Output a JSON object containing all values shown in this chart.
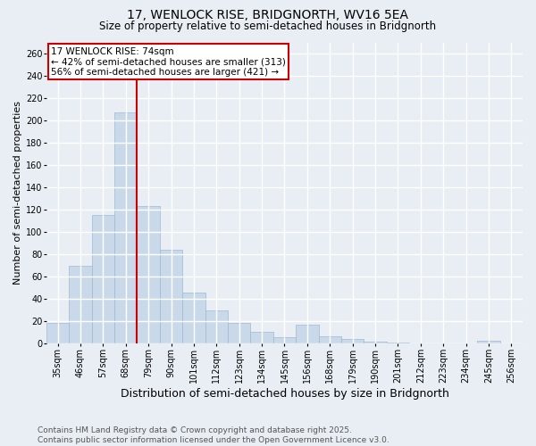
{
  "title": "17, WENLOCK RISE, BRIDGNORTH, WV16 5EA",
  "subtitle": "Size of property relative to semi-detached houses in Bridgnorth",
  "xlabel": "Distribution of semi-detached houses by size in Bridgnorth",
  "ylabel": "Number of semi-detached properties",
  "categories": [
    "35sqm",
    "46sqm",
    "57sqm",
    "68sqm",
    "79sqm",
    "90sqm",
    "101sqm",
    "112sqm",
    "123sqm",
    "134sqm",
    "145sqm",
    "156sqm",
    "168sqm",
    "179sqm",
    "190sqm",
    "201sqm",
    "212sqm",
    "223sqm",
    "234sqm",
    "245sqm",
    "256sqm"
  ],
  "values": [
    19,
    70,
    115,
    207,
    123,
    84,
    46,
    30,
    19,
    11,
    6,
    17,
    7,
    4,
    2,
    1,
    0,
    0,
    0,
    3,
    0
  ],
  "bar_color": "#c9d9ea",
  "bar_edge_color": "#9fb8d0",
  "annotation_text_line1": "17 WENLOCK RISE: 74sqm",
  "annotation_text_line2": "← 42% of semi-detached houses are smaller (313)",
  "annotation_text_line3": "56% of semi-detached houses are larger (421) →",
  "ylim": [
    0,
    270
  ],
  "yticks": [
    0,
    20,
    40,
    60,
    80,
    100,
    120,
    140,
    160,
    180,
    200,
    220,
    240,
    260
  ],
  "footer": "Contains HM Land Registry data © Crown copyright and database right 2025.\nContains public sector information licensed under the Open Government Licence v3.0.",
  "bg_color": "#e8eef4",
  "grid_color": "#ffffff",
  "annotation_box_color": "#ffffff",
  "annotation_box_edge": "#cc0000",
  "line_color": "#cc0000",
  "title_fontsize": 10,
  "subtitle_fontsize": 8.5,
  "axis_label_fontsize": 8,
  "tick_fontsize": 7,
  "annotation_fontsize": 7.5,
  "footer_fontsize": 6.5
}
